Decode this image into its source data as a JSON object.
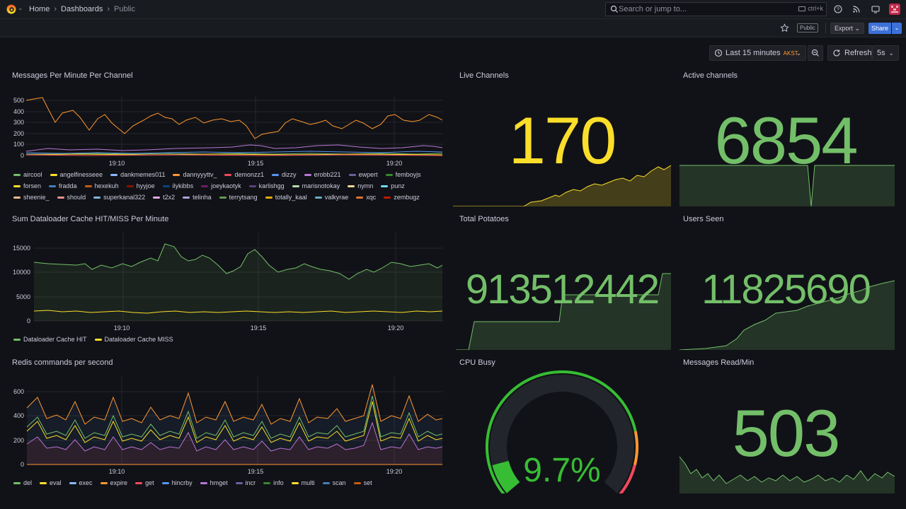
{
  "topbar": {
    "breadcrumbs": [
      "Home",
      "Dashboards",
      "Public"
    ],
    "search_placeholder": "Search or jump to...",
    "search_shortcut": "ctrl+k"
  },
  "toolbar": {
    "public_badge": "Public",
    "export_label": "Export",
    "share_label": "Share",
    "time_range": "Last 15 minutes",
    "timezone": "AKST",
    "refresh_label": "Refresh",
    "refresh_interval": "5s"
  },
  "colors": {
    "green": "#73bf69",
    "yellow": "#fade2a",
    "orange": "#ff9830",
    "blue": "#5794f2",
    "purple": "#b877d9",
    "red": "#f2495c",
    "bg": "#111217"
  },
  "panels": {
    "messages": {
      "title": "Messages Per Minute Per Channel",
      "y_ticks": [
        "500",
        "400",
        "300",
        "200",
        "100",
        "0"
      ],
      "x_ticks": [
        "19:10",
        "19:15",
        "19:20"
      ],
      "legend": [
        {
          "name": "aircool",
          "color": "#73bf69"
        },
        {
          "name": "angelfinesseee",
          "color": "#fade2a"
        },
        {
          "name": "dankmemes011",
          "color": "#8ab8ff"
        },
        {
          "name": "dannyyyttv_",
          "color": "#ff9830"
        },
        {
          "name": "demonzz1",
          "color": "#f2495c"
        },
        {
          "name": "dizzy",
          "color": "#5794f2"
        },
        {
          "name": "erobb221",
          "color": "#b877d9"
        },
        {
          "name": "ewpert",
          "color": "#705da0"
        },
        {
          "name": "femboyjs",
          "color": "#37872d"
        },
        {
          "name": "forsen",
          "color": "#fade2a"
        },
        {
          "name": "fradda",
          "color": "#447ebc"
        },
        {
          "name": "hexekuh",
          "color": "#c15c17"
        },
        {
          "name": "hyyjoe",
          "color": "#890f02"
        },
        {
          "name": "ilykibbs",
          "color": "#0a437c"
        },
        {
          "name": "joeykaotyk",
          "color": "#6d1f62"
        },
        {
          "name": "karlishgg",
          "color": "#584477"
        },
        {
          "name": "marisnotokay",
          "color": "#b7dbab"
        },
        {
          "name": "nymn",
          "color": "#f4d598"
        },
        {
          "name": "punz",
          "color": "#70dbed"
        },
        {
          "name": "sheenie_",
          "color": "#f9ba8f"
        },
        {
          "name": "should",
          "color": "#f29191"
        },
        {
          "name": "superkanal322",
          "color": "#82b5d8"
        },
        {
          "name": "t2x2",
          "color": "#e5a8e2"
        },
        {
          "name": "telinha",
          "color": "#aea2e0"
        },
        {
          "name": "terrytsang",
          "color": "#629e51"
        },
        {
          "name": "totally_kaal",
          "color": "#e5ac0e"
        },
        {
          "name": "valkyrae",
          "color": "#64b0c8"
        },
        {
          "name": "xqc",
          "color": "#e0752d"
        },
        {
          "name": "zembugz",
          "color": "#bf1b00"
        }
      ]
    },
    "live_channels": {
      "title": "Live Channels",
      "value": "170"
    },
    "active_channels": {
      "title": "Active channels",
      "value": "6854"
    },
    "cache": {
      "title": "Sum Dataloader Cache HIT/MISS Per Minute",
      "y_ticks": [
        "15000",
        "10000",
        "5000",
        "0"
      ],
      "x_ticks": [
        "19:10",
        "19:15",
        "19:20"
      ],
      "legend": [
        {
          "name": "Dataloader Cache HIT",
          "color": "#73bf69"
        },
        {
          "name": "Dataloader Cache MISS",
          "color": "#fade2a"
        }
      ]
    },
    "total_potatoes": {
      "title": "Total Potatoes",
      "value": "913512442"
    },
    "users_seen": {
      "title": "Users Seen",
      "value": "11825690"
    },
    "redis": {
      "title": "Redis commands per second",
      "y_ticks": [
        "600",
        "400",
        "200",
        "0"
      ],
      "x_ticks": [
        "19:10",
        "19:15",
        "19:20"
      ],
      "legend": [
        {
          "name": "del",
          "color": "#73bf69"
        },
        {
          "name": "eval",
          "color": "#fade2a"
        },
        {
          "name": "exec",
          "color": "#8ab8ff"
        },
        {
          "name": "expire",
          "color": "#ff9830"
        },
        {
          "name": "get",
          "color": "#f2495c"
        },
        {
          "name": "hincrby",
          "color": "#5794f2"
        },
        {
          "name": "hmget",
          "color": "#b877d9"
        },
        {
          "name": "incr",
          "color": "#705da0"
        },
        {
          "name": "info",
          "color": "#37872d"
        },
        {
          "name": "multi",
          "color": "#fade2a"
        },
        {
          "name": "scan",
          "color": "#447ebc"
        },
        {
          "name": "set",
          "color": "#c15c17"
        }
      ]
    },
    "cpu_busy": {
      "title": "CPU Busy",
      "value": "9.7%",
      "percent": 9.7
    },
    "messages_read": {
      "title": "Messages Read/Min",
      "value": "503"
    }
  }
}
